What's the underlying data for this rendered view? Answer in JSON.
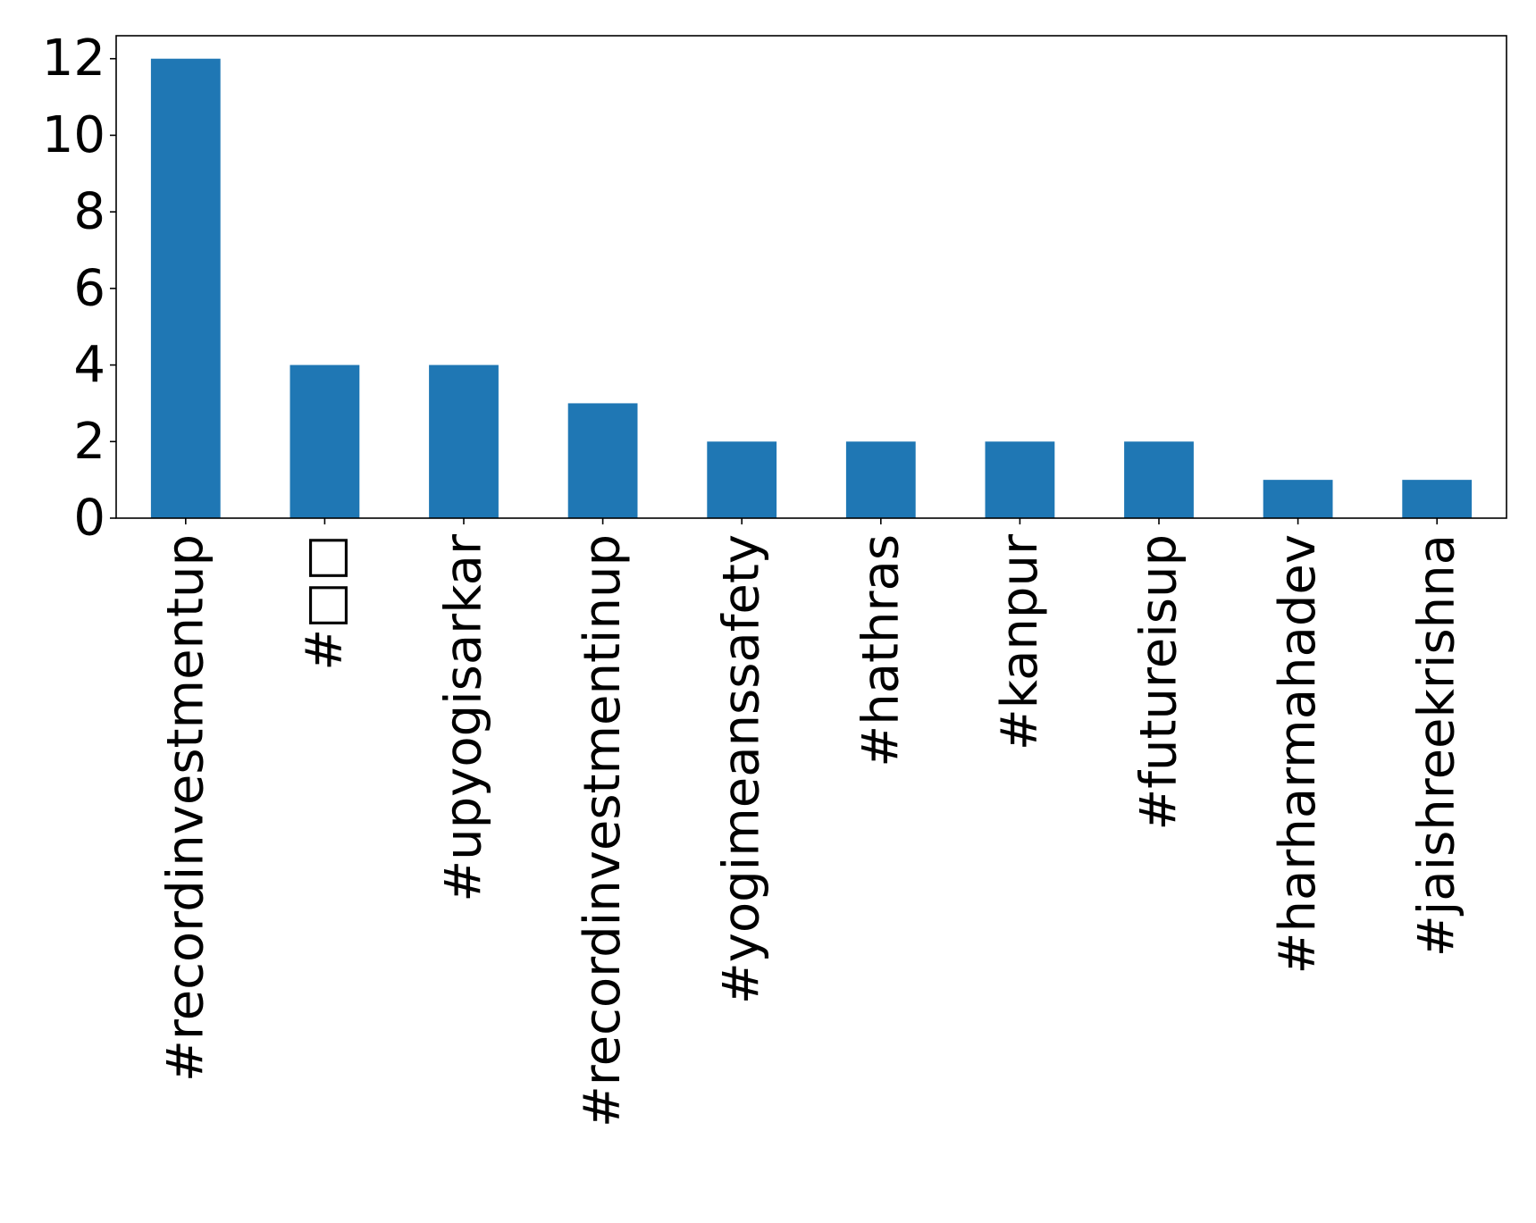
{
  "chart_data": {
    "type": "bar",
    "title": "",
    "xlabel": "",
    "ylabel": "",
    "categories": [
      "#recordinvestmentup",
      "#□□",
      "#upyogisarkar",
      "#recordinvestmentinup",
      "#yogimeanssafety",
      "#hathras",
      "#kanpur",
      "#futureisup",
      "#harharmahadev",
      "#jaishreekrishna"
    ],
    "values": [
      12,
      4,
      4,
      3,
      2,
      2,
      2,
      2,
      1,
      1
    ],
    "ylim": [
      0,
      12.6
    ],
    "yticks": [
      0,
      2,
      4,
      6,
      8,
      10,
      12
    ],
    "grid": false,
    "legend": "none",
    "bar_color": "#1f77b4"
  }
}
